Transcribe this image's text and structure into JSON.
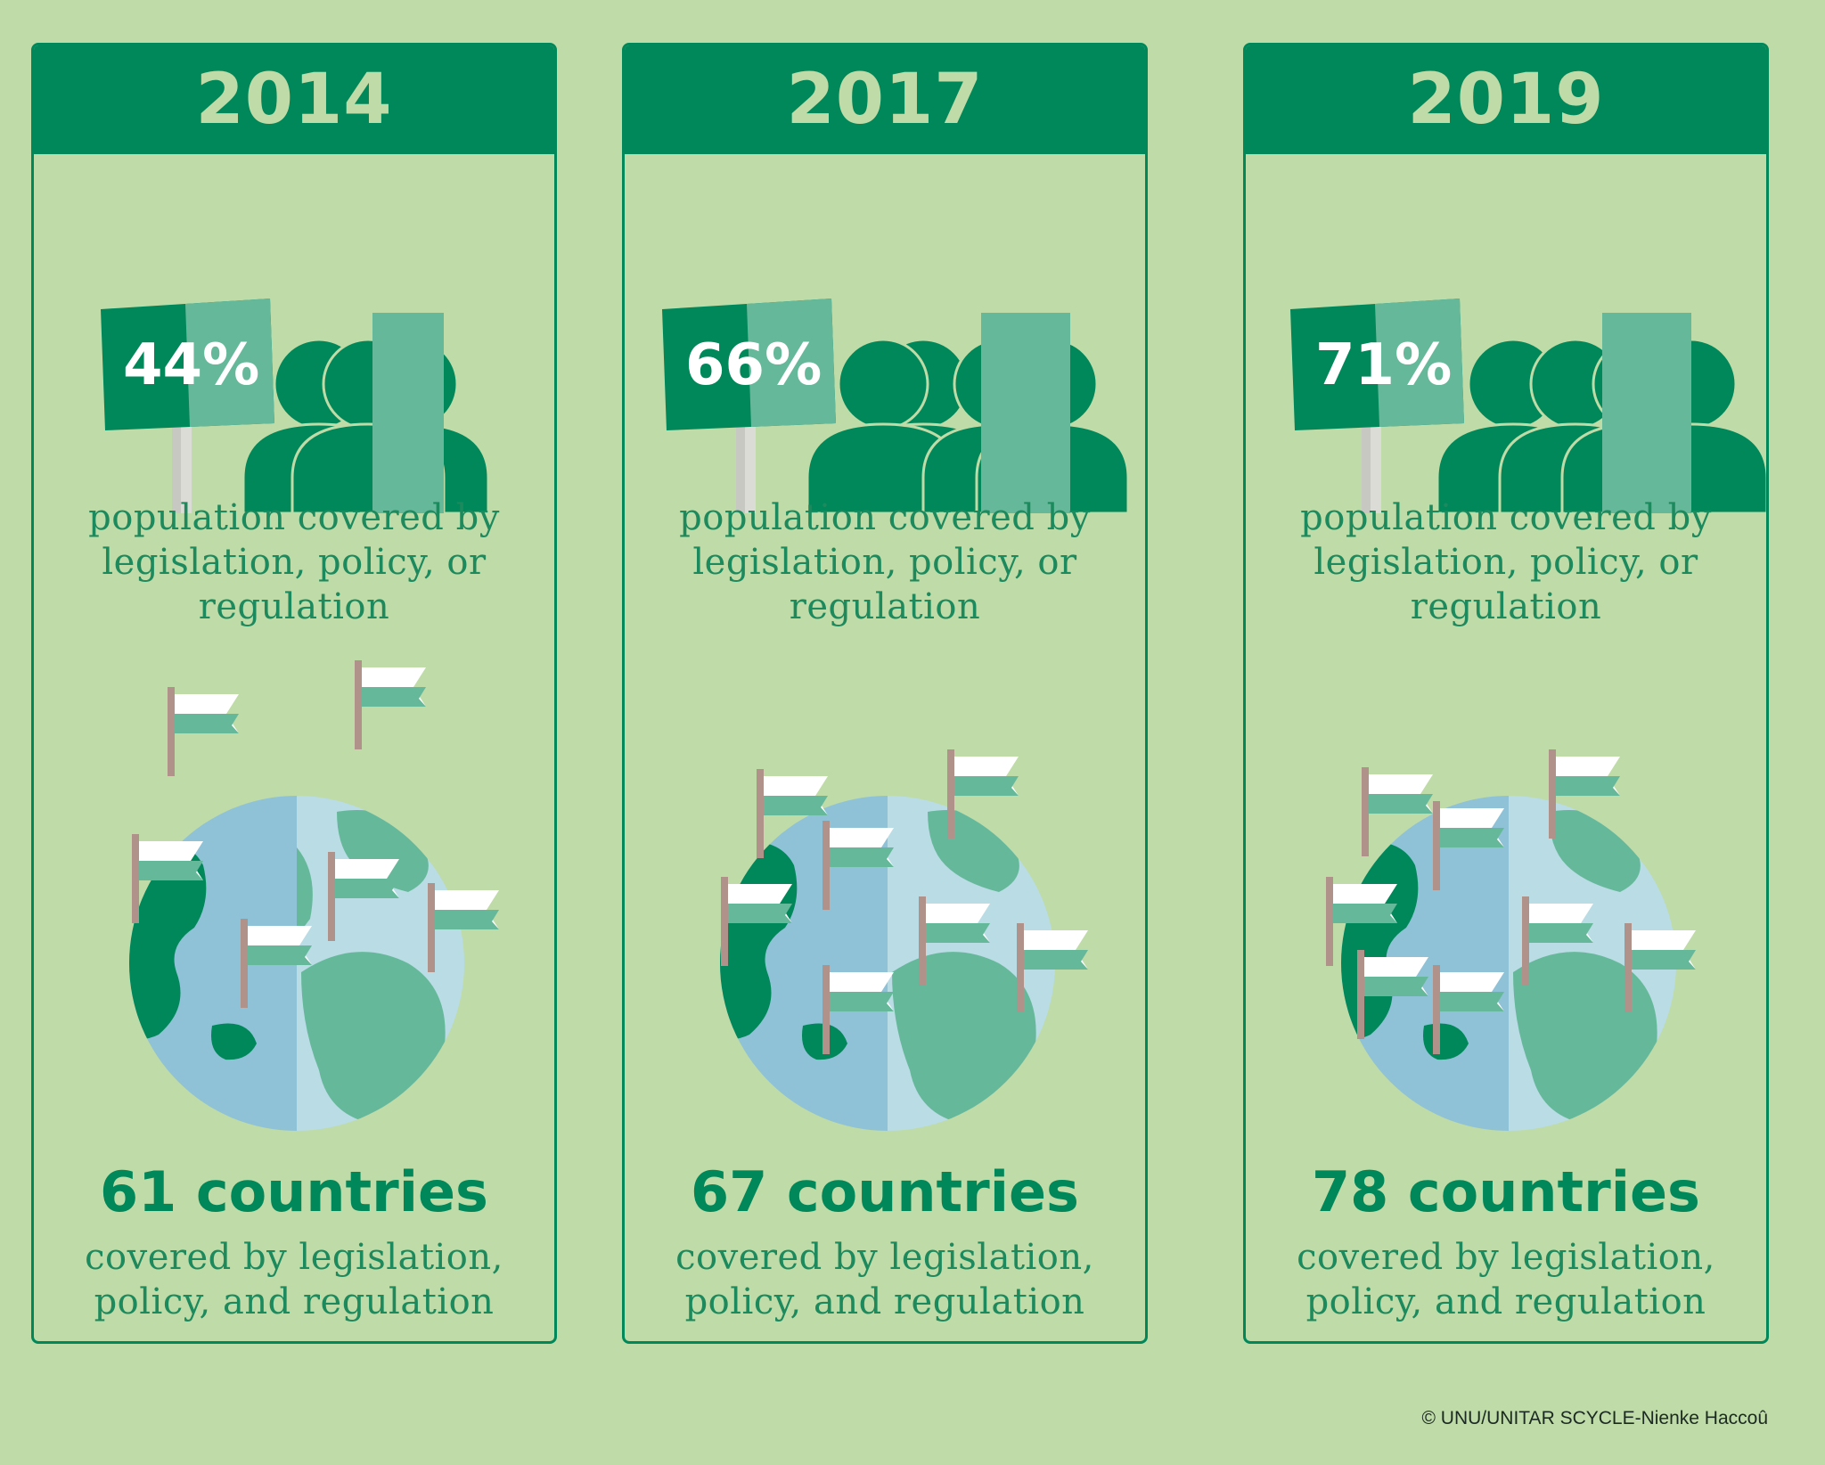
{
  "panels": [
    {
      "year": "2014",
      "population_percent": "44%",
      "population_text": "population covered by legislation, policy, or regulation",
      "countries": "61 countries",
      "countries_text": "covered by legislation, policy, and regulation"
    },
    {
      "year": "2017",
      "population_percent": "66%",
      "population_text": "population covered by legislation, policy, or regulation",
      "countries": "67 countries",
      "countries_text": "covered by legislation, policy, and regulation"
    },
    {
      "year": "2019",
      "population_percent": "71%",
      "population_text": "population covered by legislation, policy, or regulation",
      "countries": "78 countries",
      "countries_text": "covered by legislation, policy, and regulation"
    }
  ],
  "credit": "© UNU/UNITAR SCYCLE-Nienke Haccoû",
  "colors": {
    "background": "#bfdba7",
    "dark_green": "#00875a",
    "mid_green": "#66b89a",
    "ocean_dark": "#8fc2d6",
    "ocean_light": "#b9dce5"
  }
}
